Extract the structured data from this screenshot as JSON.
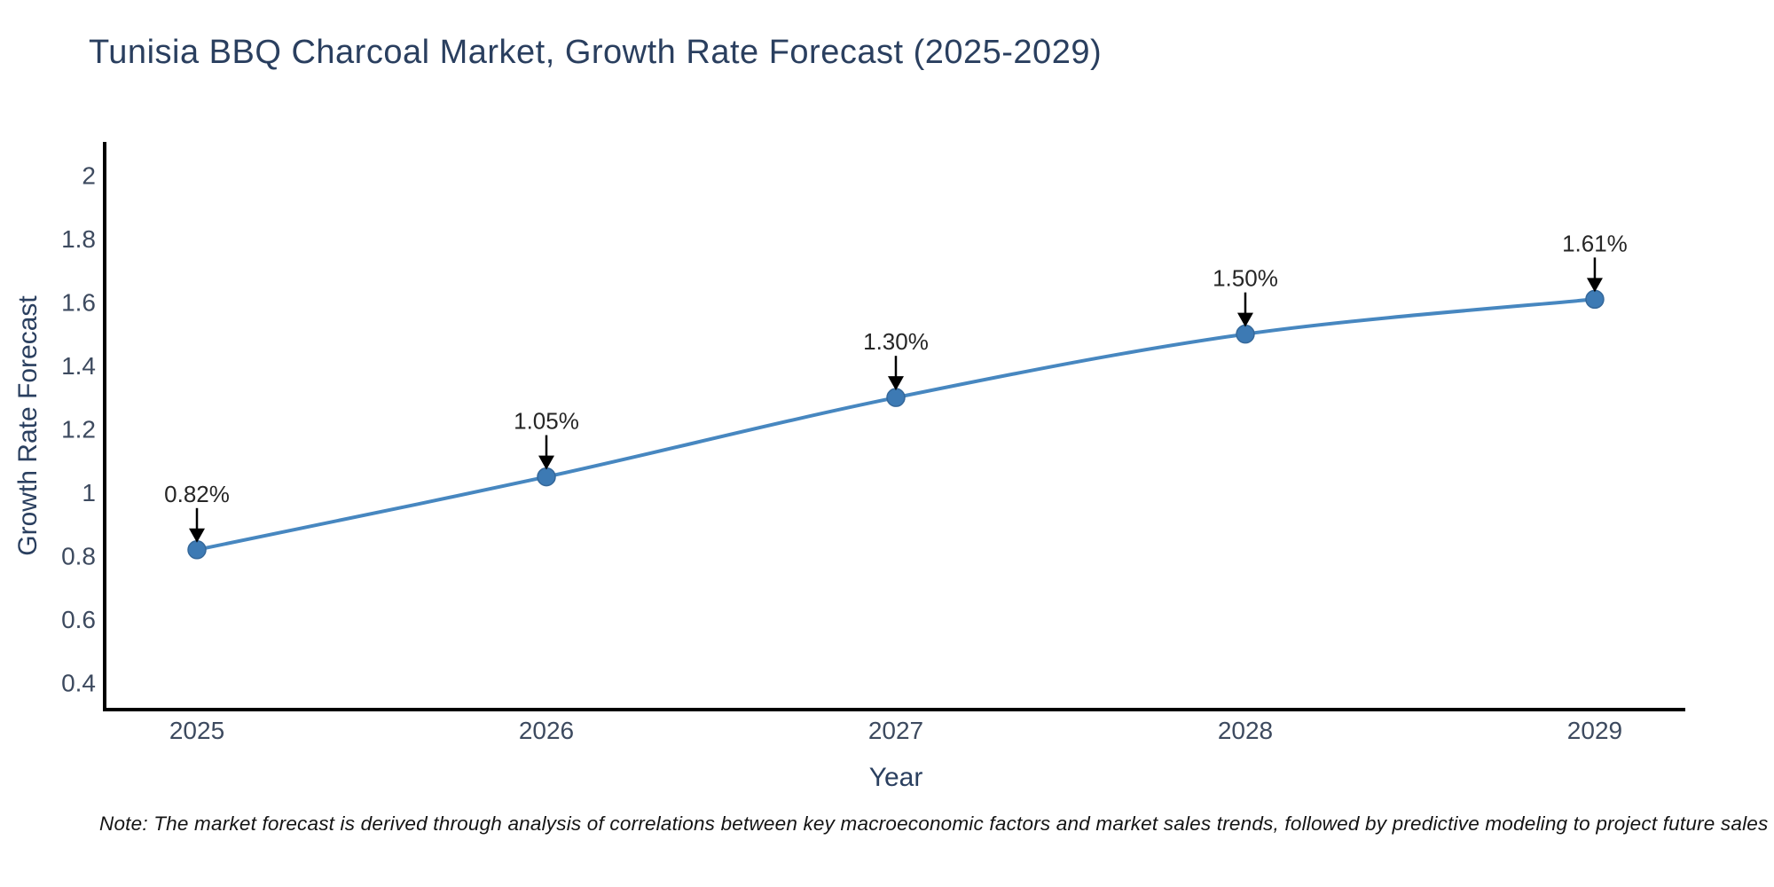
{
  "title": "Tunisia BBQ Charcoal Market, Growth Rate Forecast (2025-2029)",
  "note": "Note: The market forecast is derived through analysis of correlations between key macroeconomic factors and market sales trends, followed by predictive modeling to project future sales",
  "chart_data": {
    "type": "line",
    "title": "Tunisia BBQ Charcoal Market, Growth Rate Forecast (2025-2029)",
    "xlabel": "Year",
    "ylabel": "Growth Rate Forecast",
    "x": [
      2025,
      2026,
      2027,
      2028,
      2029
    ],
    "values": [
      0.82,
      1.05,
      1.3,
      1.5,
      1.61
    ],
    "point_labels": [
      "0.82%",
      "1.05%",
      "1.30%",
      "1.50%",
      "1.61%"
    ],
    "xticks": [
      2025,
      2026,
      2027,
      2028,
      2029
    ],
    "xtick_labels": [
      "2025",
      "2026",
      "2027",
      "2028",
      "2029"
    ],
    "yticks": [
      0.4,
      0.6,
      0.8,
      1,
      1.2,
      1.4,
      1.6,
      1.8,
      2
    ],
    "ytick_labels": [
      "0.4",
      "0.6",
      "0.8",
      "1",
      "1.2",
      "1.4",
      "1.6",
      "1.8",
      "2"
    ],
    "xlim": [
      2024.736,
      2029.259
    ],
    "ylim": [
      0.316,
      2.106
    ],
    "grid": false,
    "legend": "none",
    "line_shape": "spline",
    "line_color": "#4787c0",
    "marker_color": "#3d7ab4",
    "marker_edge_color": "#35689a",
    "axis_line_color": "#000000",
    "annotation_arrow_color": "#000000"
  }
}
